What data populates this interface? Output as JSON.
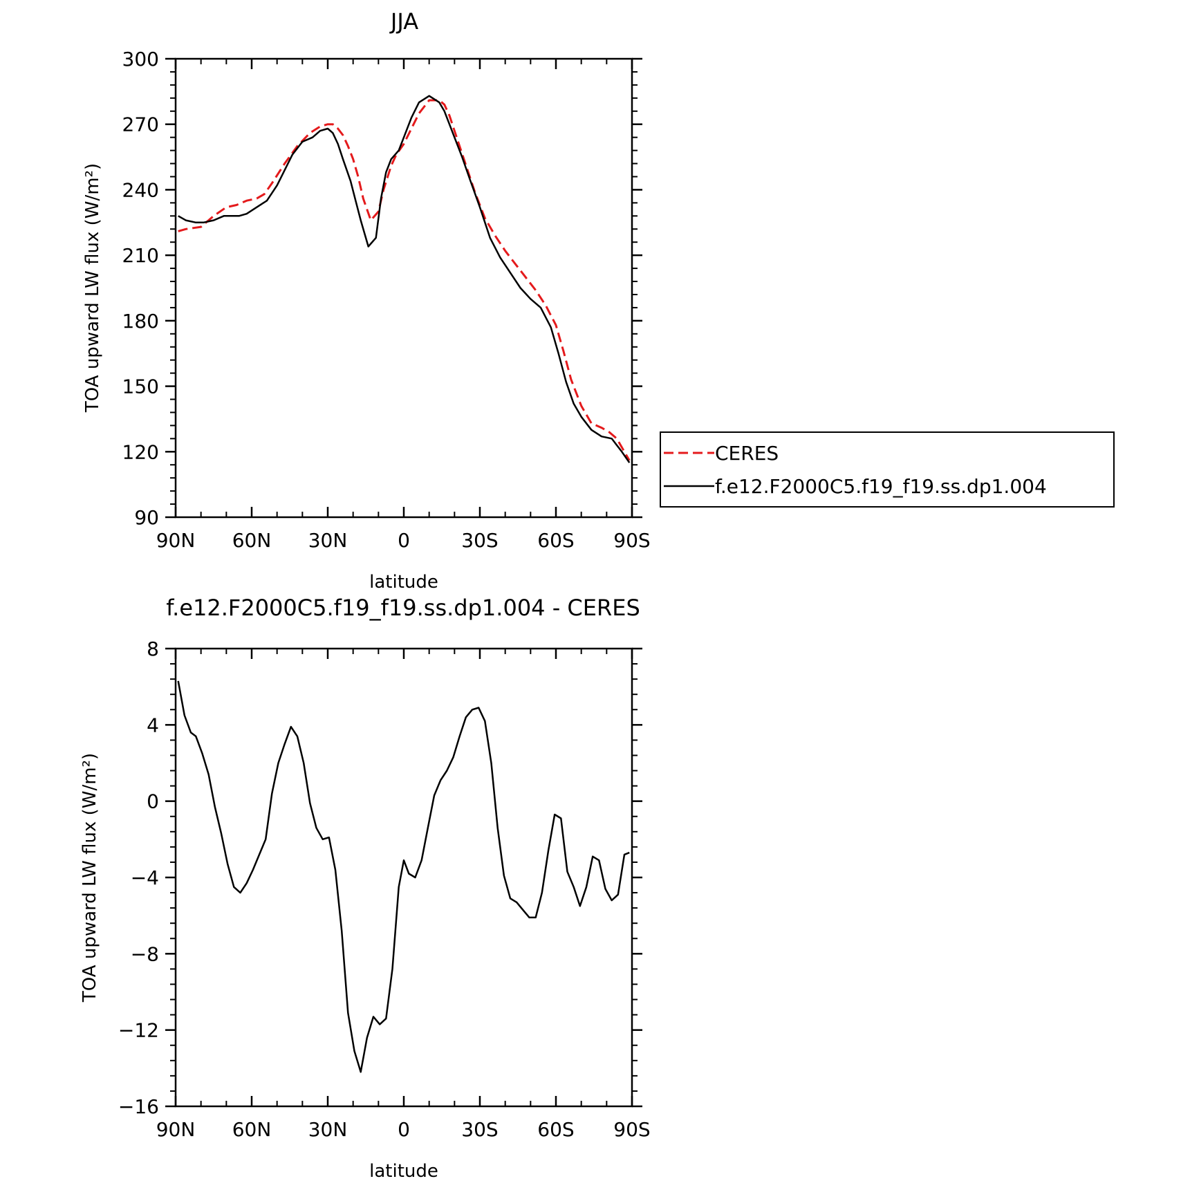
{
  "chart_data": [
    {
      "type": "line",
      "title": "JJA",
      "xlabel": "latitude",
      "ylabel": "TOA upward LW flux (W/m²)",
      "xlim": [
        90,
        -90
      ],
      "ylim": [
        90,
        300
      ],
      "xticks": [
        90,
        60,
        30,
        0,
        -30,
        -60,
        -90
      ],
      "xtick_labels": [
        "90N",
        "60N",
        "30N",
        "0",
        "30S",
        "60S",
        "90S"
      ],
      "yticks": [
        90,
        120,
        150,
        180,
        210,
        240,
        270,
        300
      ],
      "ytick_labels": [
        "90",
        "120",
        "150",
        "180",
        "210",
        "240",
        "270",
        "300"
      ],
      "legend": "right",
      "series": [
        {
          "name": "CERES",
          "color": "#e41a1c",
          "style": "dashed",
          "x": [
            89,
            86,
            80,
            75,
            70,
            66,
            62,
            58,
            55,
            52,
            47,
            42,
            37,
            33,
            30,
            28,
            26,
            24,
            22,
            20,
            18,
            16,
            13,
            10,
            8,
            5,
            3,
            0,
            -3,
            -6,
            -10,
            -14,
            -16,
            -18,
            -20,
            -24,
            -28,
            -32,
            -36,
            -40,
            -44,
            -48,
            -52,
            -56,
            -60,
            -63,
            -66,
            -70,
            -74,
            -78,
            -81,
            -84,
            -87,
            -89
          ],
          "y": [
            221,
            222,
            223,
            228,
            232,
            233,
            235,
            236,
            238,
            243,
            252,
            260,
            266,
            269,
            270,
            270,
            268,
            265,
            260,
            254,
            246,
            236,
            226,
            230,
            240,
            251,
            256,
            261,
            268,
            275,
            281,
            281,
            279,
            274,
            267,
            253,
            239,
            227,
            219,
            212,
            206,
            200,
            194,
            187,
            178,
            166,
            153,
            141,
            133,
            131,
            129,
            126,
            120,
            116
          ]
        },
        {
          "name": "f.e12.F2000C5.f19_f19.ss.dp1.004",
          "color": "#000000",
          "style": "solid",
          "x": [
            89,
            86,
            82,
            79,
            75,
            71,
            68,
            65,
            62,
            58,
            54,
            50,
            44,
            40,
            36,
            33,
            30,
            28,
            26,
            24,
            21,
            19,
            17,
            14,
            11,
            9,
            7,
            5,
            2,
            0,
            -3,
            -6,
            -10,
            -14,
            -16,
            -18,
            -20,
            -23,
            -26,
            -30,
            -34,
            -38,
            -42,
            -46,
            -50,
            -54,
            -58,
            -61,
            -64,
            -67,
            -70,
            -74,
            -78,
            -82,
            -86,
            -89
          ],
          "y": [
            228,
            226,
            225,
            225,
            226,
            228,
            228,
            228,
            229,
            232,
            235,
            242,
            256,
            262,
            264,
            267,
            268,
            266,
            261,
            254,
            244,
            235,
            226,
            214,
            218,
            236,
            248,
            254,
            258,
            264,
            273,
            280,
            283,
            280,
            276,
            270,
            264,
            255,
            245,
            232,
            218,
            209,
            202,
            195,
            190,
            186,
            177,
            165,
            152,
            142,
            136,
            130,
            127,
            126,
            120,
            115
          ]
        }
      ]
    },
    {
      "type": "line",
      "title": "f.e12.F2000C5.f19_f19.ss.dp1.004 - CERES",
      "xlabel": "latitude",
      "ylabel": "TOA upward LW flux (W/m²)",
      "xlim": [
        90,
        -90
      ],
      "ylim": [
        -16,
        8
      ],
      "xticks": [
        90,
        60,
        30,
        0,
        -30,
        -60,
        -90
      ],
      "xtick_labels": [
        "90N",
        "60N",
        "30N",
        "0",
        "30S",
        "60S",
        "90S"
      ],
      "yticks": [
        -16,
        -12,
        -8,
        -4,
        0,
        4,
        8
      ],
      "ytick_labels": [
        "−16",
        "−12",
        "−8",
        "−4",
        "0",
        "4",
        "8"
      ],
      "series": [
        {
          "color": "#000000",
          "style": "solid",
          "x": [
            89,
            86.5,
            84,
            82,
            79.5,
            77,
            74.5,
            72,
            69.5,
            67,
            64.5,
            62,
            59.5,
            57,
            54.5,
            52,
            49.5,
            47,
            44.5,
            42,
            39.5,
            37,
            34.5,
            32,
            29.5,
            27,
            24.5,
            22,
            19.5,
            17,
            14.5,
            12,
            9.5,
            7,
            4.5,
            2,
            0,
            -2,
            -4.5,
            -7,
            -9.5,
            -12,
            -14.5,
            -17,
            -19.5,
            -22,
            -24.5,
            -27,
            -29.5,
            -32,
            -34.5,
            -37,
            -39.5,
            -42,
            -44.5,
            -47,
            -49.5,
            -52,
            -54.5,
            -57,
            -59.5,
            -62,
            -64.5,
            -67,
            -69.5,
            -72,
            -74.5,
            -77,
            -79.5,
            -82,
            -84.5,
            -87,
            -89
          ],
          "y": [
            6.3,
            4.5,
            3.6,
            3.4,
            2.5,
            1.4,
            -0.3,
            -1.7,
            -3.3,
            -4.5,
            -4.8,
            -4.3,
            -3.6,
            -2.8,
            -2.0,
            0.4,
            2.0,
            3.0,
            3.9,
            3.4,
            2.0,
            -0.1,
            -1.4,
            -2.0,
            -1.9,
            -3.6,
            -6.8,
            -11.1,
            -13.1,
            -14.2,
            -12.4,
            -11.3,
            -11.7,
            -11.4,
            -8.8,
            -4.5,
            -3.1,
            -3.8,
            -4.0,
            -3.1,
            -1.4,
            0.3,
            1.1,
            1.6,
            2.3,
            3.4,
            4.4,
            4.8,
            4.9,
            4.2,
            2.0,
            -1.4,
            -3.9,
            -5.1,
            -5.3,
            -5.7,
            -6.1,
            -6.1,
            -4.8,
            -2.6,
            -0.7,
            -0.9,
            -3.7,
            -4.5,
            -5.5,
            -4.5,
            -2.9,
            -3.1,
            -4.6,
            -5.2,
            -4.9,
            -2.8,
            -2.7
          ]
        }
      ]
    }
  ]
}
